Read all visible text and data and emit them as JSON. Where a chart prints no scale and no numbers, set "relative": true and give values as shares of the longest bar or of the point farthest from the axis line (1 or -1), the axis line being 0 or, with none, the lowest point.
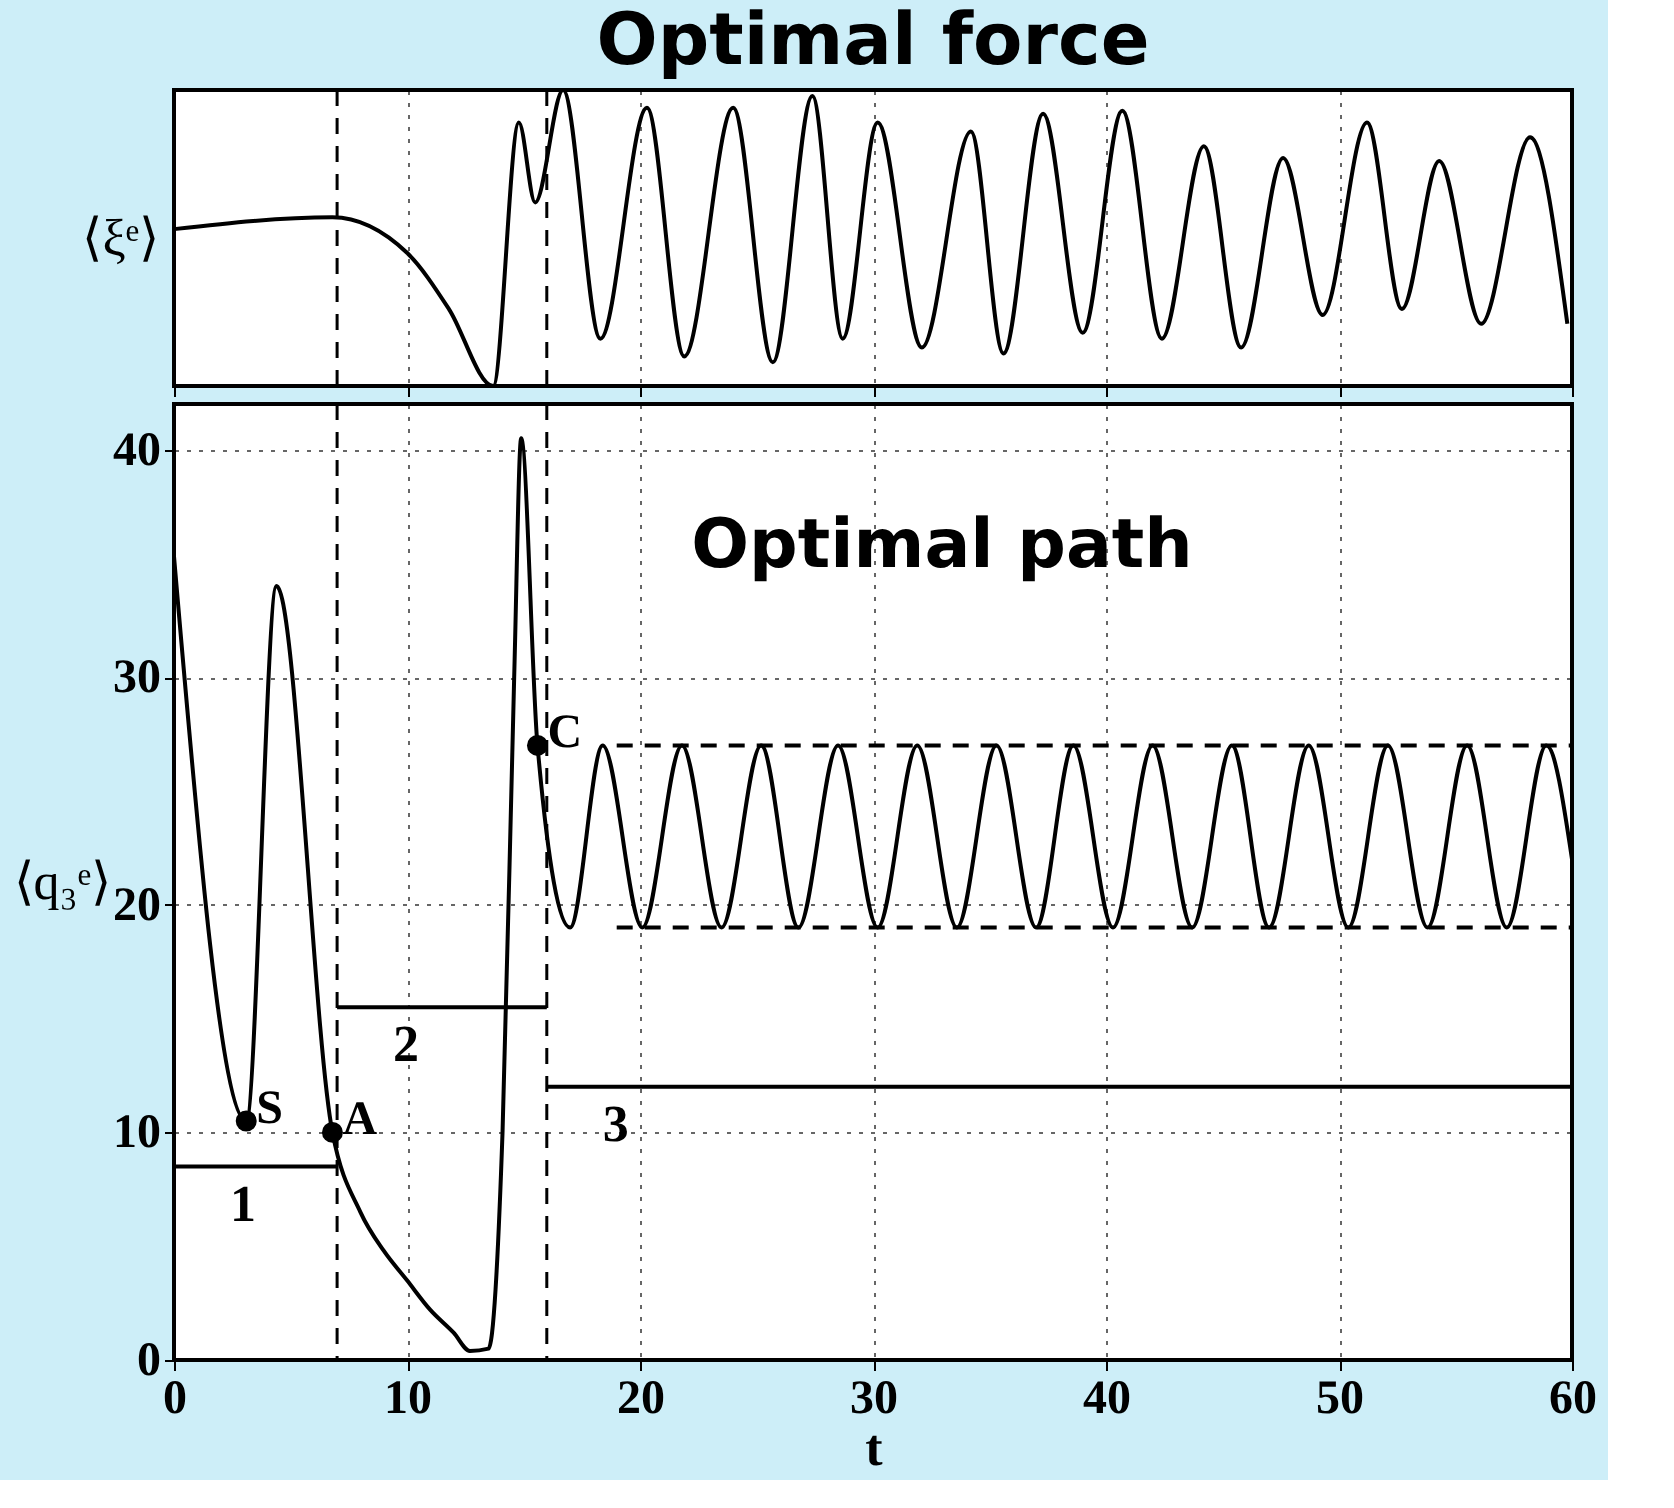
{
  "chart_data": [
    {
      "type": "line",
      "title": "Optimal force",
      "ylabel": "⟨ξᵉ⟩",
      "relative": true,
      "xlim": [
        0,
        60
      ],
      "xticks": [
        0,
        10,
        20,
        30,
        40,
        50,
        60
      ],
      "tick_labels": false,
      "grid": "x",
      "ref_lines": [
        {
          "axis": "x",
          "value": 7,
          "line_style": "dashed"
        },
        {
          "axis": "x",
          "value": 16,
          "line_style": "dashed"
        }
      ],
      "series": [
        {
          "color": "#000000",
          "x": [
            0,
            6.8,
            10,
            11.8,
            13.7,
            14.8,
            15.5,
            16.7,
            18.3,
            20.3,
            21.9,
            24,
            25.7,
            27.4,
            28.7,
            30.2,
            32.1,
            34.2,
            35.6,
            37.3,
            39,
            40.7,
            42.4,
            44.2,
            45.8,
            47.6,
            49.3,
            51.2,
            52.7,
            54.3,
            56.1,
            58.2,
            59.8
          ],
          "values": [
            0.53,
            0.57,
            0.45,
            0.26,
            0,
            0.89,
            0.62,
            1,
            0.16,
            0.94,
            0.1,
            0.94,
            0.08,
            0.98,
            0.16,
            0.89,
            0.13,
            0.86,
            0.11,
            0.92,
            0.18,
            0.93,
            0.16,
            0.81,
            0.13,
            0.77,
            0.24,
            0.89,
            0.26,
            0.76,
            0.21,
            0.84,
            0.21
          ]
        }
      ]
    },
    {
      "type": "line",
      "xlabel": "t",
      "ylabel": "⟨q₃ᵉ⟩",
      "xlim": [
        0,
        60
      ],
      "ylim": [
        0,
        42
      ],
      "xticks": [
        0,
        10,
        20,
        30,
        40,
        50,
        60
      ],
      "yticks": [
        0,
        10,
        20,
        30,
        40
      ],
      "grid": true,
      "annotations": [
        "Optimal path",
        {
          "text": "S",
          "x": 3.1,
          "y": 10.5
        },
        {
          "text": "A",
          "x": 6.8,
          "y": 10
        },
        {
          "text": "C",
          "x": 15.6,
          "y": 27
        }
      ],
      "ref_lines": [
        {
          "axis": "x",
          "value": 7,
          "line_style": "dashed"
        },
        {
          "axis": "x",
          "value": 16,
          "line_style": "dashed"
        }
      ],
      "series": [
        {
          "color": "#000000",
          "x": [
            0,
            3.1,
            4.4,
            6.8,
            8,
            9,
            10,
            11,
            12,
            12.7,
            13.5,
            14.1,
            14.6,
            14.9,
            15.6,
            17,
            18.4,
            20.1,
            21.8,
            23.5,
            25.2,
            26.8,
            28.5,
            30.2,
            31.9,
            33.6,
            35.3,
            37,
            38.6,
            40.3,
            42,
            43.7,
            45.4,
            47,
            48.7,
            50.4,
            52.1,
            53.8,
            55.5,
            57.2,
            58.9,
            60
          ],
          "values": [
            35.3,
            10.5,
            34,
            10,
            6.5,
            4.8,
            3.5,
            2.2,
            1.2,
            0.4,
            0.5,
            10,
            30,
            40.5,
            27,
            19,
            27,
            19,
            27,
            19,
            27,
            19,
            27,
            19,
            27,
            19,
            27,
            19,
            27,
            19,
            27,
            19,
            27,
            19,
            27,
            19,
            27,
            19,
            27,
            19,
            27,
            22
          ]
        },
        {
          "type": "line",
          "line_style": "dashed",
          "color": "#000000",
          "x": [
            19,
            60
          ],
          "values": [
            27,
            27
          ]
        },
        {
          "type": "line",
          "line_style": "dashed",
          "color": "#000000",
          "x": [
            19,
            60
          ],
          "values": [
            19,
            19
          ]
        },
        {
          "type": "line",
          "name": "1",
          "color": "#000000",
          "x": [
            0,
            7
          ],
          "values": [
            8.5,
            8.5
          ]
        },
        {
          "type": "line",
          "name": "2",
          "color": "#000000",
          "x": [
            7,
            16
          ],
          "values": [
            15.5,
            15.5
          ]
        },
        {
          "type": "line",
          "name": "3",
          "color": "#000000",
          "x": [
            16,
            60
          ],
          "values": [
            12,
            12
          ]
        },
        {
          "type": "scatter",
          "marker": "circle",
          "color": "#000000",
          "x": [
            3.1,
            6.8,
            15.6
          ],
          "values": [
            10.5,
            10,
            27
          ]
        }
      ]
    }
  ]
}
